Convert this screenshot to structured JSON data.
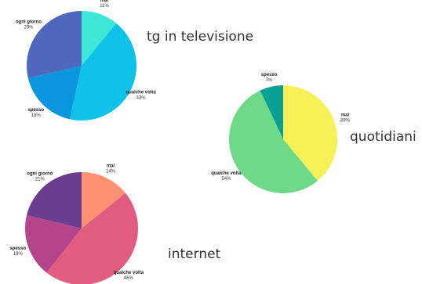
{
  "chart_data": [
    {
      "type": "pie",
      "title": "tg in televisione",
      "slices": [
        {
          "label": "mai",
          "value": 11,
          "pct_text": "11%",
          "color": "#3ee6d6"
        },
        {
          "label": "qualche volta",
          "value": 43,
          "pct_text": "43%",
          "color": "#0ec2e8"
        },
        {
          "label": "spesso",
          "value": 18,
          "pct_text": "18%",
          "color": "#0a96dc"
        },
        {
          "label": "ogni giorno",
          "value": 29,
          "pct_text": "29%",
          "color": "#4f68be"
        }
      ]
    },
    {
      "type": "pie",
      "title": "quotidiani",
      "slices": [
        {
          "label": "mai",
          "value": 39,
          "pct_text": "39%",
          "color": "#f7f158"
        },
        {
          "label": "qualche volta",
          "value": 54,
          "pct_text": "54%",
          "color": "#6fd98a"
        },
        {
          "label": "spesso",
          "value": 7,
          "pct_text": "7%",
          "color": "#0aa093"
        }
      ]
    },
    {
      "type": "pie",
      "title": "internet",
      "slices": [
        {
          "label": "mai",
          "value": 14,
          "pct_text": "14%",
          "color": "#ff9173"
        },
        {
          "label": "qualche volta",
          "value": 46,
          "pct_text": "46%",
          "color": "#e15d80"
        },
        {
          "label": "spesso",
          "value": 18,
          "pct_text": "18%",
          "color": "#b5458a"
        },
        {
          "label": "ogni giorno",
          "value": 21,
          "pct_text": "21%",
          "color": "#6a3d8e"
        }
      ]
    }
  ]
}
